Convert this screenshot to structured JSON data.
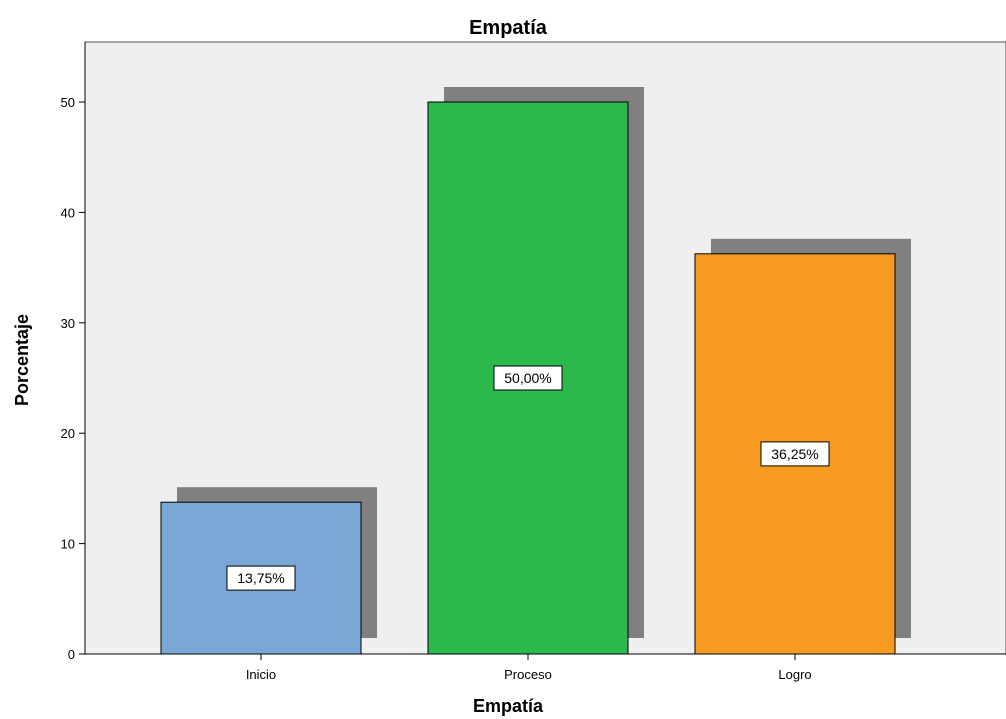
{
  "chart_data": {
    "type": "bar",
    "title": "Empatía",
    "xlabel": "Empatía",
    "ylabel": "Porcentaje",
    "categories": [
      "Inicio",
      "Proceso",
      "Logro"
    ],
    "values": [
      13.75,
      50.0,
      36.25
    ],
    "data_labels": [
      "13,75%",
      "50,00%",
      "36,25%"
    ],
    "colors": [
      "#7ba7d6",
      "#2db84b",
      "#f79a20"
    ],
    "yticks": [
      "0",
      "10",
      "20",
      "30",
      "40",
      "50"
    ],
    "ylim": [
      0,
      55
    ],
    "grid": false,
    "legend": "none",
    "plot_background": "#efefef",
    "bar_shadow": true,
    "shadow_color": "#808080"
  }
}
